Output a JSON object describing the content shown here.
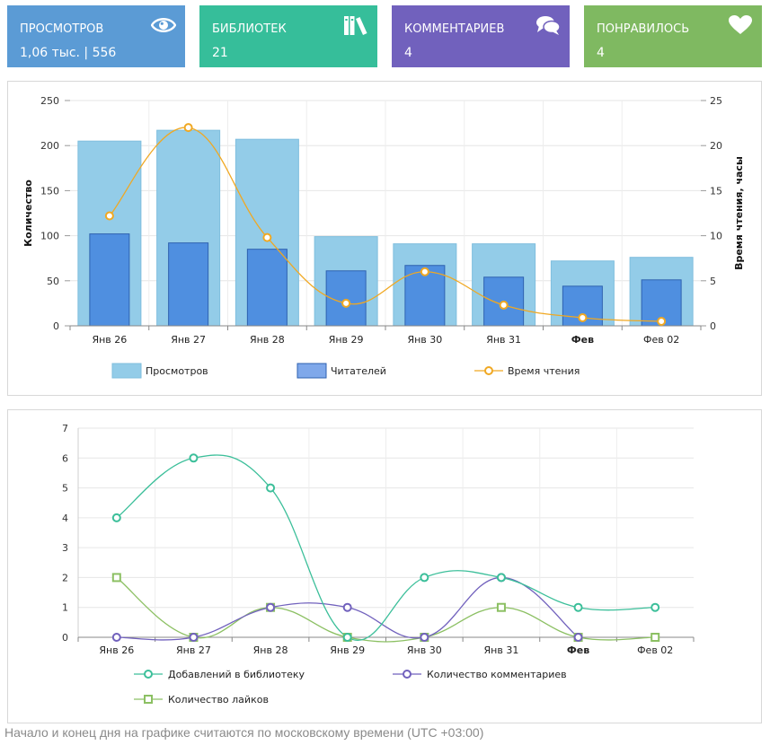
{
  "cards": [
    {
      "label": "ПРОСМОТРОВ",
      "value": "1,06 тыс. | 556",
      "color": "#5b9bd5",
      "icon": "eye-icon"
    },
    {
      "label": "БИБЛИОТЕК",
      "value": "21",
      "color": "#36be9a",
      "icon": "books-icon"
    },
    {
      "label": "КОММЕНТАРИЕВ",
      "value": "4",
      "color": "#7161bd",
      "icon": "comments-icon"
    },
    {
      "label": "ПОНРАВИЛОСЬ",
      "value": "4",
      "color": "#7fb961",
      "icon": "heart-icon"
    }
  ],
  "chart_data": [
    {
      "type": "bar",
      "categories": [
        "Янв 26",
        "Янв 27",
        "Янв 28",
        "Янв 29",
        "Янв 30",
        "Янв 31",
        "Фев",
        "Фев 02"
      ],
      "bold_categories": [
        "Фев"
      ],
      "ylabel": "Количество",
      "y2label": "Время чтения, часы",
      "ylim": [
        0,
        250
      ],
      "y2lim": [
        0,
        25
      ],
      "yticks": [
        0,
        50,
        100,
        150,
        200,
        250
      ],
      "y2ticks": [
        0,
        5,
        10,
        15,
        20,
        25
      ],
      "grid": true,
      "legend_position": "bottom",
      "series": [
        {
          "name": "Просмотров",
          "kind": "bar",
          "axis": "left",
          "color": "#93cce8",
          "values": [
            205,
            217,
            207,
            99,
            91,
            91,
            72,
            76
          ]
        },
        {
          "name": "Читателей",
          "kind": "bar",
          "axis": "left",
          "color": "#4f8fe0",
          "values": [
            102,
            92,
            85,
            61,
            67,
            54,
            44,
            51
          ]
        },
        {
          "name": "Время чтения",
          "kind": "line",
          "axis": "right",
          "color": "#f0a822",
          "values": [
            12.2,
            22,
            9.8,
            2.5,
            6,
            2.3,
            0.9,
            0.5
          ]
        }
      ]
    },
    {
      "type": "line",
      "categories": [
        "Янв 26",
        "Янв 27",
        "Янв 28",
        "Янв 29",
        "Янв 30",
        "Янв 31",
        "Фев",
        "Фев 02"
      ],
      "bold_categories": [
        "Фев"
      ],
      "ylim": [
        0,
        7
      ],
      "yticks": [
        0,
        1,
        2,
        3,
        4,
        5,
        6,
        7
      ],
      "grid": true,
      "legend_position": "bottom",
      "series": [
        {
          "name": "Добавлений в библиотеку",
          "color": "#3cbf9a",
          "marker": "circle",
          "values": [
            4,
            6,
            5,
            0,
            2,
            2,
            1,
            1
          ]
        },
        {
          "name": "Количество комментариев",
          "color": "#7161bd",
          "marker": "circle",
          "values": [
            0,
            0,
            1,
            1,
            0,
            2,
            0,
            null
          ]
        },
        {
          "name": "Количество лайков",
          "color": "#8cc063",
          "marker": "square",
          "values": [
            2,
            0,
            1,
            0,
            0,
            1,
            0,
            0
          ]
        }
      ]
    }
  ],
  "footer": {
    "note": "Начало и конец дня на графике считаются по московскому времени (UTC +03:00)"
  }
}
